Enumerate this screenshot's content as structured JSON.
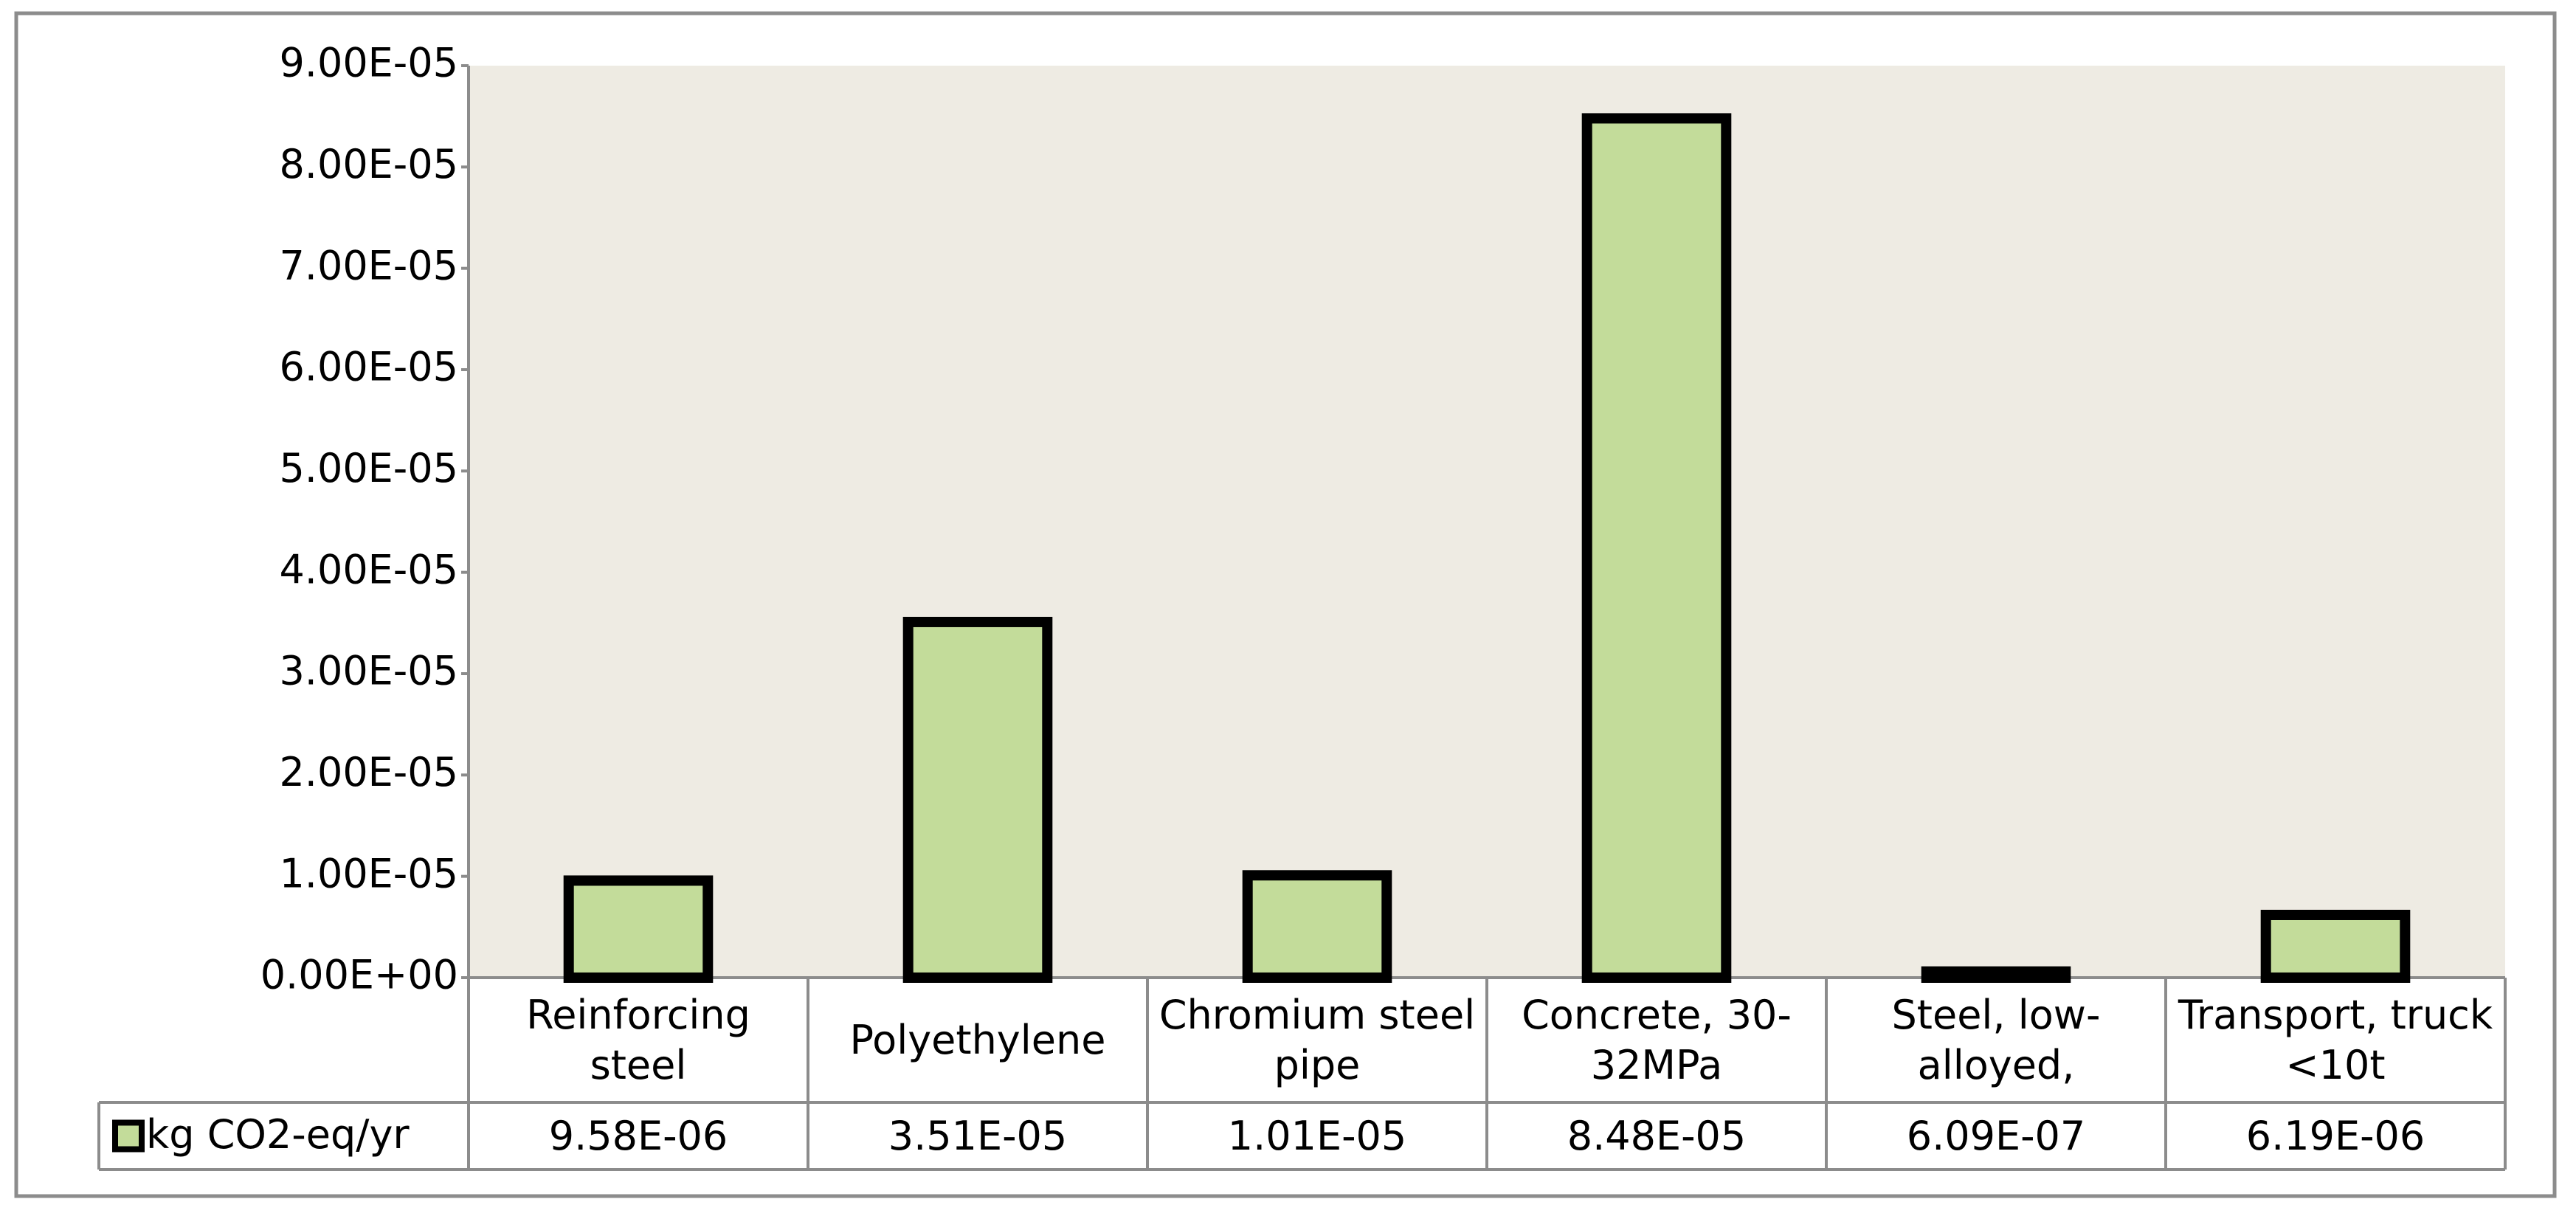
{
  "chart_data": {
    "type": "bar",
    "categories": [
      "Reinforcing steel",
      "Polyethylene",
      "Chromium steel pipe",
      "Concrete, 30-32MPa",
      "Steel, low-alloyed,",
      "Transport, truck <10t"
    ],
    "series": [
      {
        "name": "kg CO2-eq/yr",
        "color": "#c3dc9a",
        "values": [
          9.58e-06,
          3.51e-05,
          1.01e-05,
          8.48e-05,
          6.09e-07,
          6.19e-06
        ],
        "value_labels": [
          "9.58E-06",
          "3.51E-05",
          "1.01E-05",
          "8.48E-05",
          "6.09E-07",
          "6.19E-06"
        ]
      }
    ],
    "ylim": [
      0,
      9e-05
    ],
    "yticks": [
      {
        "value": 0,
        "label": "0.00E+00"
      },
      {
        "value": 1e-05,
        "label": "1.00E-05"
      },
      {
        "value": 2e-05,
        "label": "2.00E-05"
      },
      {
        "value": 3e-05,
        "label": "3.00E-05"
      },
      {
        "value": 4e-05,
        "label": "4.00E-05"
      },
      {
        "value": 5e-05,
        "label": "5.00E-05"
      },
      {
        "value": 6e-05,
        "label": "6.00E-05"
      },
      {
        "value": 7e-05,
        "label": "7.00E-05"
      },
      {
        "value": 8e-05,
        "label": "8.00E-05"
      },
      {
        "value": 9e-05,
        "label": "9.00E-05"
      }
    ],
    "plot_background": "#eeebe3"
  }
}
